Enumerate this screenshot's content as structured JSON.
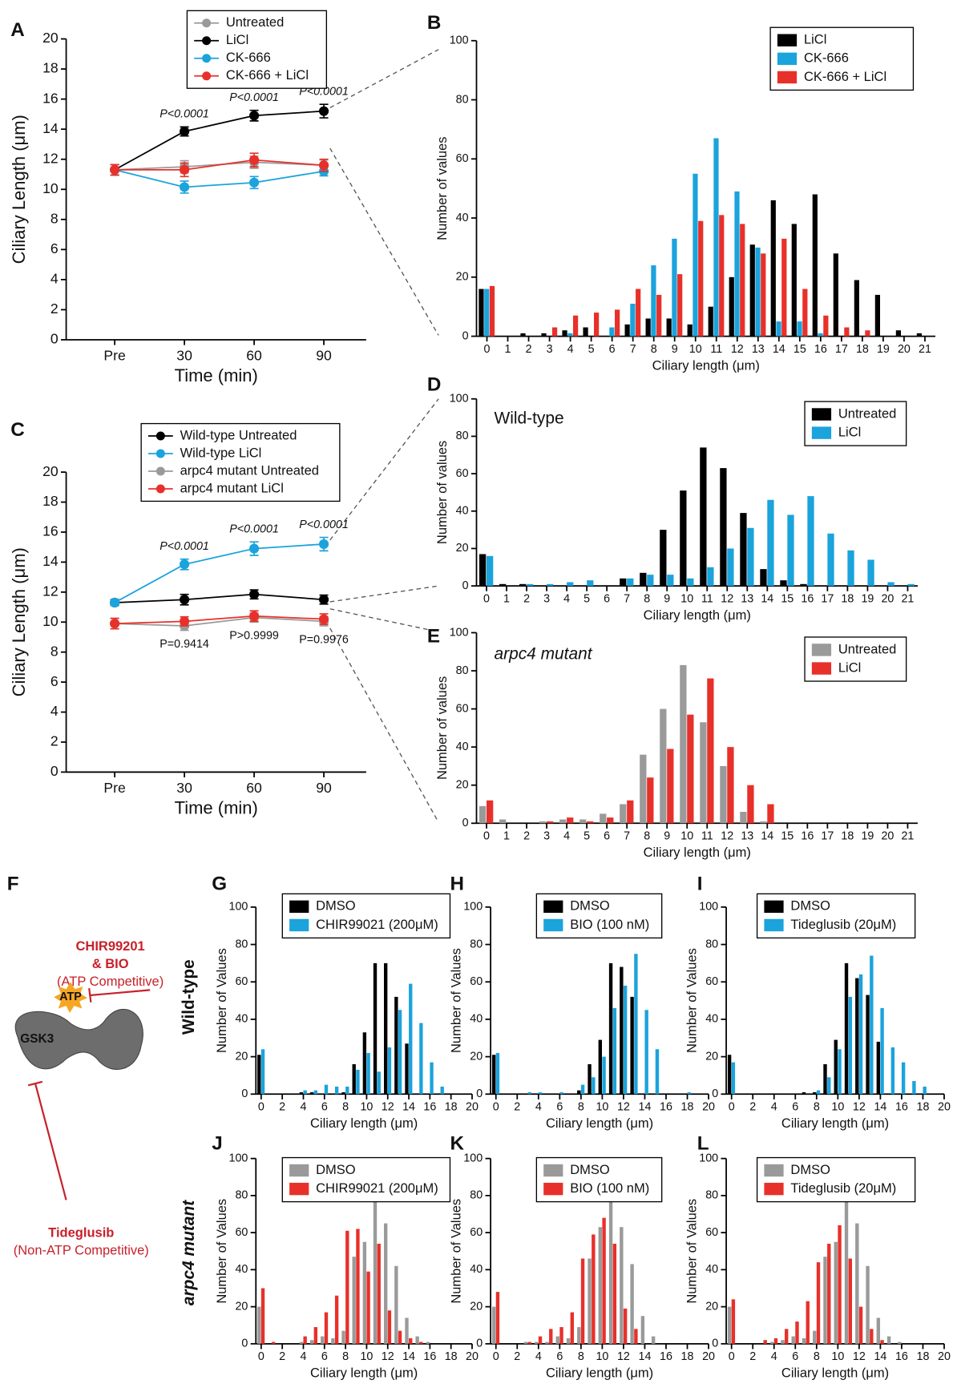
{
  "chart_data": [
    {
      "panel": "A",
      "type": "line",
      "categories": [
        "Pre",
        "30",
        "60",
        "90"
      ],
      "xlabel": "Time (min)",
      "ylabel": "Ciliary Length (μm)",
      "ylim": [
        0,
        20
      ],
      "yticks": [
        0,
        2,
        4,
        6,
        8,
        10,
        12,
        14,
        16,
        18,
        20
      ],
      "series": [
        {
          "name": "Untreated",
          "color": "#9a9a9a",
          "values": [
            11.3,
            11.5,
            11.8,
            11.6
          ],
          "errors": [
            0.35,
            0.4,
            0.4,
            0.35
          ]
        },
        {
          "name": "LiCl",
          "color": "#000000",
          "values": [
            11.3,
            13.85,
            14.9,
            15.2
          ],
          "errors": [
            0.35,
            0.3,
            0.35,
            0.45
          ]
        },
        {
          "name": "CK-666",
          "color": "#1ba3dc",
          "values": [
            11.3,
            10.15,
            10.45,
            11.2
          ],
          "errors": [
            0.35,
            0.4,
            0.4,
            0.3
          ]
        },
        {
          "name": "CK-666 + LiCl",
          "color": "#e8302a",
          "values": [
            11.3,
            11.3,
            11.95,
            11.6
          ],
          "errors": [
            0.35,
            0.45,
            0.45,
            0.4
          ]
        }
      ],
      "annotations_above": [
        "P<0.0001",
        "P<0.0001",
        "P<0.0001"
      ]
    },
    {
      "panel": "B",
      "type": "bar",
      "categories": [
        0,
        1,
        2,
        3,
        4,
        5,
        6,
        7,
        8,
        9,
        10,
        11,
        12,
        13,
        14,
        15,
        16,
        17,
        18,
        19,
        20,
        21
      ],
      "xlabel": "Ciliary length (μm)",
      "ylabel": "Number of values",
      "ylim": [
        0,
        100
      ],
      "yticks": [
        0,
        20,
        40,
        60,
        80,
        100
      ],
      "series": [
        {
          "name": "LiCl",
          "color": "#000000",
          "values": [
            16,
            0,
            1,
            1,
            2,
            3,
            0,
            4,
            6,
            6,
            4,
            10,
            20,
            31,
            46,
            38,
            48,
            28,
            19,
            14,
            2,
            1
          ]
        },
        {
          "name": "CK-666",
          "color": "#1ba3dc",
          "values": [
            16,
            0,
            0,
            0,
            1,
            0,
            3,
            11,
            24,
            33,
            55,
            67,
            49,
            30,
            5,
            5,
            1,
            0,
            0,
            0,
            0,
            0
          ]
        },
        {
          "name": "CK-666 + LiCl",
          "color": "#e8302a",
          "values": [
            17,
            0,
            0,
            3,
            7,
            8,
            9,
            16,
            14,
            21,
            39,
            41,
            38,
            28,
            33,
            16,
            7,
            3,
            2,
            0,
            0,
            0
          ]
        }
      ]
    },
    {
      "panel": "C",
      "type": "line",
      "categories": [
        "Pre",
        "30",
        "60",
        "90"
      ],
      "xlabel": "Time (min)",
      "ylabel": "Ciliary Length (μm)",
      "ylim": [
        0,
        20
      ],
      "yticks": [
        0,
        2,
        4,
        6,
        8,
        10,
        12,
        14,
        16,
        18,
        20
      ],
      "series": [
        {
          "name": "Wild-type Untreated",
          "color": "#000000",
          "values": [
            11.3,
            11.5,
            11.85,
            11.5
          ],
          "errors": [
            0.2,
            0.35,
            0.3,
            0.3
          ]
        },
        {
          "name": "Wild-type LiCl",
          "color": "#1ba3dc",
          "values": [
            11.3,
            13.85,
            14.9,
            15.2
          ],
          "errors": [
            0.2,
            0.35,
            0.45,
            0.45
          ]
        },
        {
          "name": "arpc4 mutant Untreated",
          "color": "#9a9a9a",
          "values": [
            9.9,
            9.75,
            10.3,
            10.05
          ],
          "errors": [
            0.35,
            0.3,
            0.3,
            0.3
          ]
        },
        {
          "name": "arpc4 mutant LiCl",
          "color": "#e8302a",
          "values": [
            9.9,
            10.05,
            10.4,
            10.2
          ],
          "errors": [
            0.35,
            0.3,
            0.35,
            0.35
          ]
        }
      ],
      "annotations_above": [
        "P<0.0001",
        "P<0.0001",
        "P<0.0001"
      ],
      "annotations_below": [
        "P=0.9414",
        "P>0.9999",
        "P=0.9976"
      ]
    },
    {
      "panel": "D",
      "type": "bar",
      "title": "Wild-type",
      "categories": [
        0,
        1,
        2,
        3,
        4,
        5,
        6,
        7,
        8,
        9,
        10,
        11,
        12,
        13,
        14,
        15,
        16,
        17,
        18,
        19,
        20,
        21
      ],
      "xlabel": "Ciliary length (μm)",
      "ylabel": "Number of values",
      "ylim": [
        0,
        100
      ],
      "yticks": [
        0,
        20,
        40,
        60,
        80,
        100
      ],
      "series": [
        {
          "name": "Untreated",
          "color": "#000000",
          "values": [
            17,
            1,
            1,
            0,
            0,
            0,
            0,
            4,
            7,
            30,
            51,
            74,
            63,
            39,
            9,
            3,
            1,
            0,
            0,
            0,
            0,
            0
          ]
        },
        {
          "name": "LiCl",
          "color": "#1ba3dc",
          "values": [
            16,
            0,
            1,
            1,
            2,
            3,
            0,
            4,
            6,
            6,
            4,
            10,
            20,
            31,
            46,
            38,
            48,
            28,
            19,
            14,
            2,
            1
          ]
        }
      ]
    },
    {
      "panel": "E",
      "type": "bar",
      "title": "arpc4 mutant",
      "categories": [
        0,
        1,
        2,
        3,
        4,
        5,
        6,
        7,
        8,
        9,
        10,
        11,
        12,
        13,
        14,
        15,
        16,
        17,
        18,
        19,
        20,
        21
      ],
      "xlabel": "Ciliary length (μm)",
      "ylabel": "Number of values",
      "ylim": [
        0,
        100
      ],
      "yticks": [
        0,
        20,
        40,
        60,
        80,
        100
      ],
      "series": [
        {
          "name": "Untreated",
          "color": "#9a9a9a",
          "values": [
            9,
            2,
            0,
            1,
            2,
            2,
            5,
            10,
            36,
            60,
            83,
            53,
            30,
            6,
            1,
            0,
            0,
            0,
            0,
            0,
            0,
            0
          ]
        },
        {
          "name": "LiCl",
          "color": "#e8302a",
          "values": [
            12,
            0,
            0,
            1,
            3,
            1,
            3,
            12,
            24,
            39,
            57,
            76,
            40,
            20,
            10,
            0,
            0,
            0,
            0,
            0,
            0,
            0
          ]
        }
      ]
    },
    {
      "panel": "G",
      "type": "bar",
      "x": [
        0,
        1,
        2,
        3,
        4,
        5,
        6,
        7,
        8,
        9,
        10,
        11,
        12,
        13,
        14,
        15,
        16,
        17,
        18
      ],
      "xlim": [
        -0.5,
        20
      ],
      "xticks": [
        0,
        2,
        4,
        6,
        8,
        10,
        12,
        14,
        16,
        18,
        20
      ],
      "xlabel": "Ciliary length (μm)",
      "ylabel": "Number of Values",
      "ylim": [
        0,
        100
      ],
      "yticks": [
        0,
        20,
        40,
        60,
        80,
        100
      ],
      "series": [
        {
          "name": "DMSO",
          "color": "#000000",
          "values": [
            21,
            0,
            0,
            0,
            1,
            1,
            0,
            0,
            1,
            16,
            33,
            70,
            70,
            52,
            27,
            0,
            0,
            0,
            0
          ]
        },
        {
          "name": "CHIR99021 (200μM)",
          "color": "#1ba3dc",
          "values": [
            24,
            0,
            0,
            0,
            2,
            2,
            5,
            4,
            4,
            13,
            22,
            12,
            25,
            45,
            59,
            38,
            17,
            4,
            0
          ]
        }
      ]
    },
    {
      "panel": "H",
      "type": "bar",
      "x": [
        0,
        1,
        2,
        3,
        4,
        5,
        6,
        7,
        8,
        9,
        10,
        11,
        12,
        13,
        14,
        15,
        16,
        17,
        18
      ],
      "xlim": [
        -0.5,
        20
      ],
      "xticks": [
        0,
        2,
        4,
        6,
        8,
        10,
        12,
        14,
        16,
        18,
        20
      ],
      "xlabel": "Ciliary length (μm)",
      "ylabel": "Number of Values",
      "ylim": [
        0,
        100
      ],
      "yticks": [
        0,
        20,
        40,
        60,
        80,
        100
      ],
      "series": [
        {
          "name": "DMSO",
          "color": "#000000",
          "values": [
            21,
            0,
            0,
            0,
            0,
            0,
            0,
            0,
            2,
            16,
            29,
            70,
            68,
            52,
            0,
            0,
            0,
            0,
            0
          ]
        },
        {
          "name": "BIO (100 nM)",
          "color": "#1ba3dc",
          "values": [
            22,
            0,
            0,
            1,
            1,
            0,
            1,
            0,
            5,
            9,
            20,
            46,
            58,
            75,
            45,
            24,
            0,
            0,
            1
          ]
        }
      ]
    },
    {
      "panel": "I",
      "type": "bar",
      "x": [
        0,
        1,
        2,
        3,
        4,
        5,
        6,
        7,
        8,
        9,
        10,
        11,
        12,
        13,
        14,
        15,
        16,
        17,
        18
      ],
      "xlim": [
        -0.5,
        20
      ],
      "xticks": [
        0,
        2,
        4,
        6,
        8,
        10,
        12,
        14,
        16,
        18,
        20
      ],
      "xlabel": "Ciliary length (μm)",
      "ylabel": "Number of Values",
      "ylim": [
        0,
        100
      ],
      "yticks": [
        0,
        20,
        40,
        60,
        80,
        100
      ],
      "series": [
        {
          "name": "DMSO",
          "color": "#000000",
          "values": [
            21,
            0,
            0,
            0,
            0,
            0,
            0,
            1,
            1,
            16,
            29,
            70,
            62,
            53,
            28,
            0,
            0,
            0,
            0
          ]
        },
        {
          "name": "Tideglusib (20μM)",
          "color": "#1ba3dc",
          "values": [
            17,
            0,
            0,
            0,
            0,
            0,
            0,
            0,
            2,
            9,
            24,
            52,
            64,
            74,
            46,
            25,
            17,
            7,
            4
          ]
        }
      ]
    },
    {
      "panel": "J",
      "type": "bar",
      "x": [
        0,
        1,
        2,
        3,
        4,
        5,
        6,
        7,
        8,
        9,
        10,
        11,
        12,
        13,
        14,
        15,
        16,
        17,
        18
      ],
      "xlim": [
        -0.5,
        20
      ],
      "xticks": [
        0,
        2,
        4,
        6,
        8,
        10,
        12,
        14,
        16,
        18,
        20
      ],
      "xlabel": "Ciliary length (μm)",
      "ylabel": "Number of Values",
      "ylim": [
        0,
        100
      ],
      "yticks": [
        0,
        20,
        40,
        60,
        80,
        100
      ],
      "series": [
        {
          "name": "DMSO",
          "color": "#9a9a9a",
          "values": [
            20,
            0,
            0,
            0,
            1,
            2,
            4,
            3,
            7,
            47,
            55,
            77,
            65,
            42,
            14,
            4,
            1,
            0,
            0
          ]
        },
        {
          "name": "CHIR99021 (200μM)",
          "color": "#e8302a",
          "values": [
            30,
            1,
            0,
            0,
            4,
            9,
            17,
            26,
            61,
            62,
            39,
            54,
            18,
            7,
            3,
            1,
            0,
            0,
            0
          ]
        }
      ]
    },
    {
      "panel": "K",
      "type": "bar",
      "x": [
        0,
        1,
        2,
        3,
        4,
        5,
        6,
        7,
        8,
        9,
        10,
        11,
        12,
        13,
        14,
        15,
        16,
        17,
        18
      ],
      "xlim": [
        -0.5,
        20
      ],
      "xticks": [
        0,
        2,
        4,
        6,
        8,
        10,
        12,
        14,
        16,
        18,
        20
      ],
      "xlabel": "Ciliary length (μm)",
      "ylabel": "Number of Values",
      "ylim": [
        0,
        100
      ],
      "yticks": [
        0,
        20,
        40,
        60,
        80,
        100
      ],
      "series": [
        {
          "name": "DMSO",
          "color": "#9a9a9a",
          "values": [
            20,
            0,
            0,
            1,
            1,
            1,
            4,
            3,
            9,
            46,
            63,
            77,
            63,
            43,
            15,
            4,
            0,
            0,
            0
          ]
        },
        {
          "name": "BIO (100 nM)",
          "color": "#e8302a",
          "values": [
            28,
            0,
            0,
            1,
            4,
            8,
            9,
            17,
            46,
            59,
            68,
            54,
            19,
            8,
            0,
            0,
            0,
            0,
            0
          ]
        }
      ]
    },
    {
      "panel": "L",
      "type": "bar",
      "x": [
        0,
        1,
        2,
        3,
        4,
        5,
        6,
        7,
        8,
        9,
        10,
        11,
        12,
        13,
        14,
        15,
        16,
        17,
        18
      ],
      "xlim": [
        -0.5,
        20
      ],
      "xticks": [
        0,
        2,
        4,
        6,
        8,
        10,
        12,
        14,
        16,
        18,
        20
      ],
      "xlabel": "Ciliary length (μm)",
      "ylabel": "Number of Values",
      "ylim": [
        0,
        100
      ],
      "yticks": [
        0,
        20,
        40,
        60,
        80,
        100
      ],
      "series": [
        {
          "name": "DMSO",
          "color": "#9a9a9a",
          "values": [
            20,
            0,
            0,
            0,
            1,
            2,
            4,
            3,
            7,
            47,
            55,
            77,
            65,
            42,
            14,
            4,
            1,
            0,
            0
          ]
        },
        {
          "name": "Tideglusib (20μM)",
          "color": "#e8302a",
          "values": [
            24,
            0,
            0,
            2,
            3,
            8,
            12,
            23,
            44,
            54,
            64,
            46,
            20,
            8,
            2,
            0,
            0,
            0,
            0
          ]
        }
      ]
    }
  ],
  "diagram": {
    "panel": "F",
    "inhibitor_top": [
      "CHIR99201",
      "& BIO",
      "(ATP Competitive)"
    ],
    "atp": "ATP",
    "enzyme": "GSK3",
    "inhibitor_bottom": [
      "Tideglusib",
      "(Non-ATP Competitive)"
    ]
  },
  "row_labels": [
    "Wild-type",
    "arpc4 mutant"
  ]
}
